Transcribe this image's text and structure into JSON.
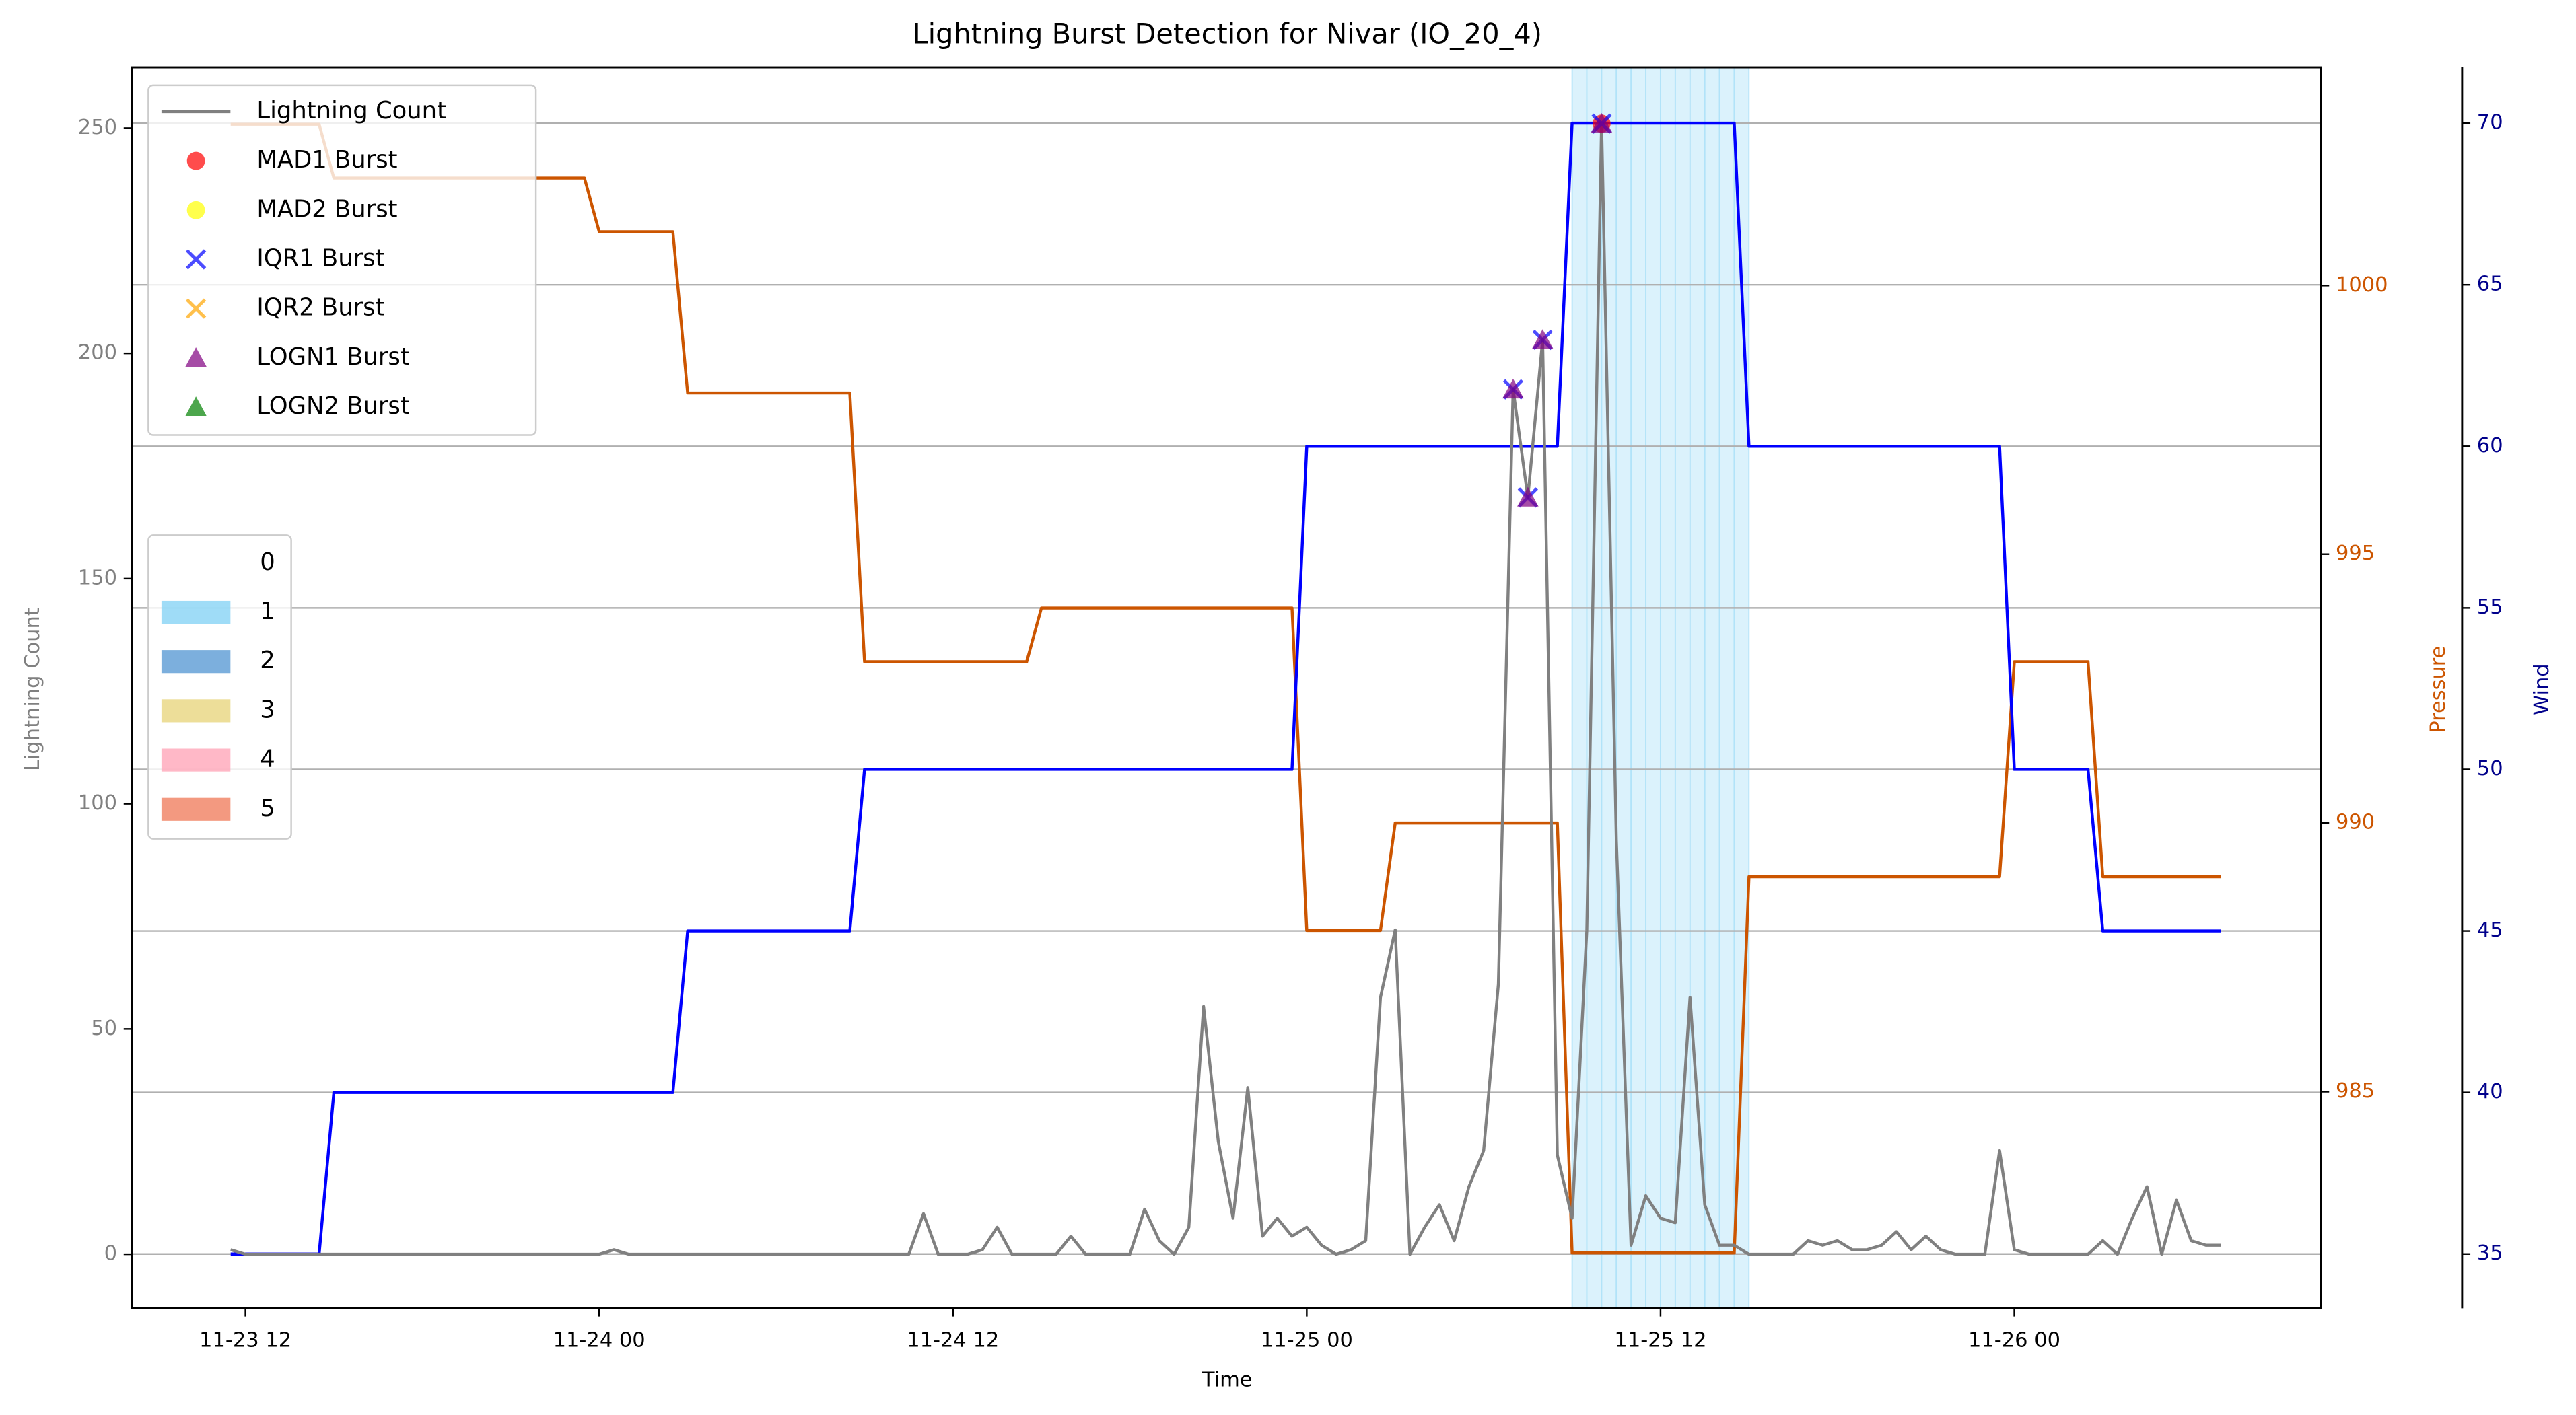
{
  "chart_data": {
    "type": "line",
    "title": "Lightning Burst Detection for Nivar (IO_20_4)",
    "x_label": "Time",
    "y_label": "Lightning Count",
    "y2_label": "Pressure",
    "y3_label": "Wind",
    "xlim": [
      -3.85,
      70.4
    ],
    "xticks": [
      {
        "value": 0,
        "label": "11-23 12"
      },
      {
        "value": 12,
        "label": "11-24 00"
      },
      {
        "value": 24,
        "label": "11-24 12"
      },
      {
        "value": 36,
        "label": "11-25 00"
      },
      {
        "value": 48,
        "label": "11-25 12"
      },
      {
        "value": 60,
        "label": "11-26 00"
      }
    ],
    "ylim": [
      -12,
      263.5
    ],
    "yticks": [
      0,
      50,
      100,
      150,
      200,
      250
    ],
    "y2lim": [
      980.97,
      1004.06
    ],
    "y2ticks": [
      985,
      990,
      995,
      1000
    ],
    "y3lim": [
      33.32,
      71.73
    ],
    "y3ticks": [
      35,
      40,
      45,
      50,
      55,
      60,
      65,
      70
    ],
    "grid": "y3",
    "axis_colors": {
      "y": "#808080",
      "y2": "#cc5500",
      "y3": "#00008b"
    },
    "series": [
      {
        "name": "Lightning Count",
        "type": "line",
        "axis": "y",
        "color": "#808080",
        "x": [
          -0.5,
          0,
          0.5,
          1,
          1.5,
          2,
          2.5,
          3,
          3.5,
          4,
          4.5,
          5,
          5.5,
          6,
          6.5,
          7,
          7.5,
          8,
          8.5,
          9,
          9.5,
          10,
          10.5,
          11,
          11.5,
          12,
          12.5,
          13,
          13.5,
          14,
          14.5,
          15,
          15.5,
          16,
          16.5,
          17,
          17.5,
          18,
          18.5,
          19,
          19.5,
          20,
          20.5,
          21,
          21.5,
          22,
          22.5,
          23,
          23.5,
          24,
          24.5,
          25,
          25.5,
          26,
          26.5,
          27,
          27.5,
          28,
          28.5,
          29,
          29.5,
          30,
          30.5,
          31,
          31.5,
          32,
          32.5,
          33,
          33.5,
          34,
          34.5,
          35,
          35.5,
          36,
          36.5,
          37,
          37.5,
          38,
          38.5,
          39,
          39.5,
          40,
          40.5,
          41,
          41.5,
          42,
          42.5,
          43,
          43.5,
          44,
          44.5,
          45,
          45.5,
          46,
          46.5,
          47,
          47.5,
          48,
          48.5,
          49,
          49.5,
          50,
          50.5,
          51,
          51.5,
          52,
          52.5,
          53,
          53.5,
          54,
          54.5,
          55,
          55.5,
          56,
          56.5,
          57,
          57.5,
          58,
          58.5,
          59,
          59.5,
          60,
          60.5,
          61,
          61.5,
          62,
          62.5,
          63,
          63.5,
          64,
          64.5,
          65,
          65.5,
          66,
          66.5,
          67
        ],
        "values": [
          1,
          0,
          0,
          0,
          0,
          0,
          0,
          0,
          0,
          0,
          0,
          0,
          0,
          0,
          0,
          0,
          0,
          0,
          0,
          0,
          0,
          0,
          0,
          0,
          0,
          0,
          1,
          0,
          0,
          0,
          0,
          0,
          0,
          0,
          0,
          0,
          0,
          0,
          0,
          0,
          0,
          0,
          0,
          0,
          0,
          0,
          0,
          9,
          0,
          0,
          0,
          1,
          6,
          0,
          0,
          0,
          0,
          4,
          0,
          0,
          0,
          0,
          10,
          3,
          0,
          6,
          55,
          25,
          8,
          37,
          4,
          8,
          4,
          6,
          2,
          0,
          1,
          3,
          57,
          72,
          0,
          6,
          11,
          3,
          15,
          23,
          60,
          192,
          168,
          203,
          22,
          8,
          72,
          251,
          92,
          2,
          13,
          8,
          7,
          57,
          11,
          2,
          2,
          0,
          0,
          0,
          0,
          3,
          2,
          3,
          1,
          1,
          2,
          5,
          1,
          4,
          1,
          0,
          0,
          0,
          23,
          1,
          0,
          0,
          0,
          0,
          0,
          3,
          0,
          8,
          15,
          0,
          12,
          3,
          2,
          2
        ]
      },
      {
        "name": "MAD1 Burst",
        "type": "scatter",
        "marker": "circle",
        "axis": "y",
        "color": "#ff0000",
        "x": [
          46
        ],
        "values": [
          251
        ]
      },
      {
        "name": "MAD2 Burst",
        "type": "scatter",
        "marker": "circle",
        "axis": "y",
        "color": "#ffff00",
        "x": [],
        "values": []
      },
      {
        "name": "IQR1 Burst",
        "type": "scatter",
        "marker": "x",
        "axis": "y",
        "color": "#0000ff",
        "x": [
          43,
          43.5,
          44,
          46
        ],
        "values": [
          192,
          168,
          203,
          251
        ]
      },
      {
        "name": "IQR2 Burst",
        "type": "scatter",
        "marker": "x",
        "axis": "y",
        "color": "#ffa500",
        "x": [],
        "values": []
      },
      {
        "name": "LOGN1 Burst",
        "type": "scatter",
        "marker": "triangle",
        "axis": "y",
        "color": "#800080",
        "x": [
          43,
          43.5,
          44,
          46
        ],
        "values": [
          192,
          168,
          203,
          251
        ]
      },
      {
        "name": "LOGN2 Burst",
        "type": "scatter",
        "marker": "triangle",
        "axis": "y",
        "color": "#008000",
        "x": [],
        "values": []
      },
      {
        "type": "line",
        "axis": "y2",
        "color": "#cc5500",
        "x": [
          -0.5,
          2.5,
          3,
          11.5,
          12,
          14.5,
          15,
          20.5,
          21,
          26.5,
          27,
          35.5,
          36,
          38.5,
          39,
          44.5,
          45,
          50.5,
          51,
          59.5,
          60,
          62.5,
          63,
          67
        ],
        "values": [
          1003,
          1003,
          1002,
          1002,
          1001,
          1001,
          998,
          998,
          993,
          993,
          994,
          994,
          988,
          988,
          990,
          990,
          982,
          982,
          989,
          989,
          993,
          993,
          989,
          989
        ]
      },
      {
        "type": "line",
        "axis": "y3",
        "color": "#0000ff",
        "x": [
          -0.5,
          2.5,
          3,
          11.5,
          12,
          14.5,
          15,
          20.5,
          21,
          26.5,
          27,
          35.5,
          36,
          38.5,
          39,
          44.5,
          45,
          50.5,
          51,
          59.5,
          60,
          62.5,
          63,
          67
        ],
        "values": [
          35,
          35,
          40,
          40,
          40,
          40,
          45,
          45,
          50,
          50,
          50,
          50,
          60,
          60,
          60,
          60,
          70,
          70,
          60,
          60,
          50,
          50,
          45,
          45
        ]
      }
    ],
    "shading": {
      "categories": [
        "0",
        "1",
        "2",
        "3",
        "4",
        "5"
      ],
      "colors": [
        "#ffffff",
        "#87d3f5",
        "#5b9bd5",
        "#e8d67f",
        "#ffa6b9",
        "#f08060"
      ],
      "spans": [
        {
          "start": 45,
          "end": 51,
          "category": 1
        }
      ]
    }
  }
}
